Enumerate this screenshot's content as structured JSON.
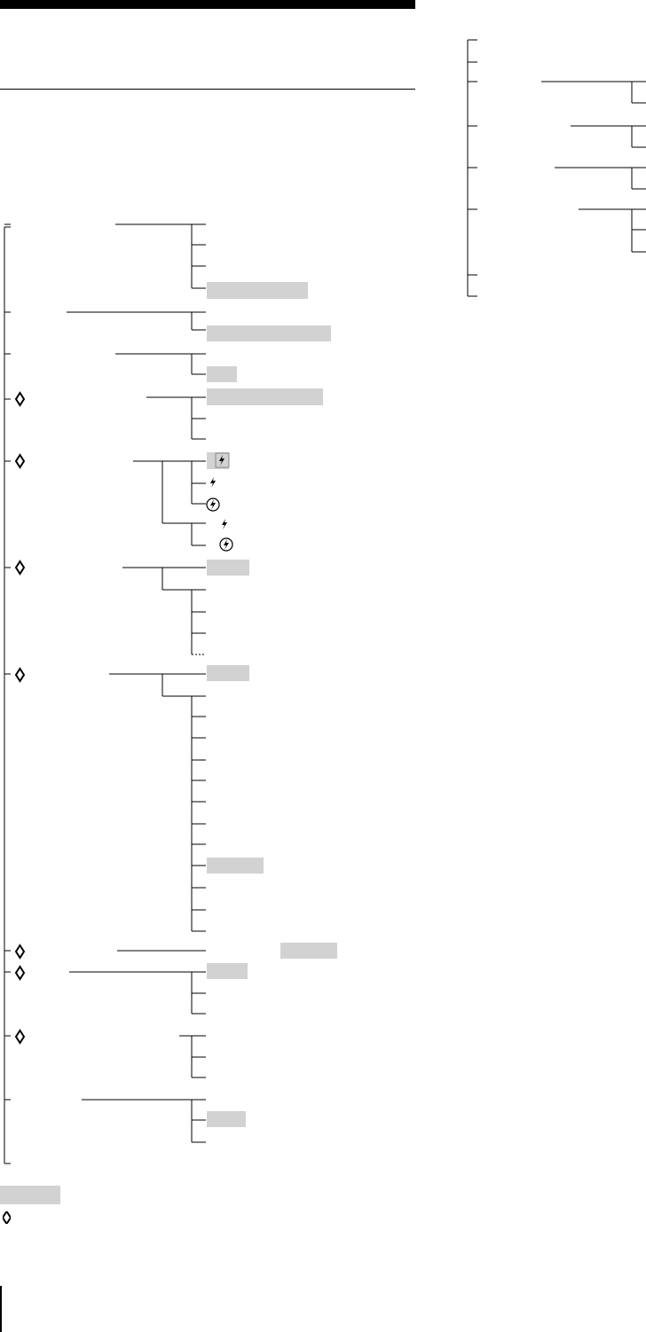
{
  "page": {
    "title": "",
    "body_text": ""
  },
  "legend": {
    "highlight_meaning": "",
    "icon_meaning": ""
  },
  "icons": {
    "adjustable": "adjust-diamond-icon",
    "flash": "flash-bolt-icon",
    "flash_circle": "flash-circle-icon"
  },
  "colors": {
    "highlight": "#d2d2d2",
    "line": "#000000"
  }
}
